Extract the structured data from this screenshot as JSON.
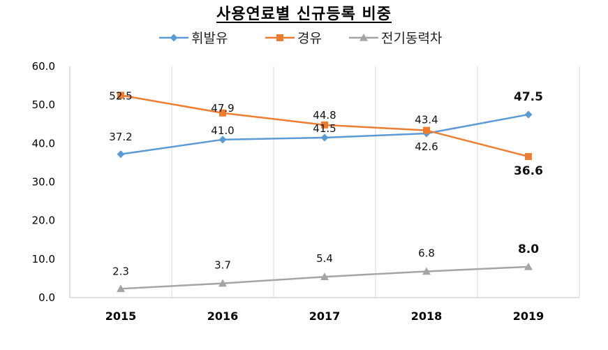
{
  "chart_data": {
    "type": "line",
    "title": "사용연료별 신규등록 비중",
    "categories": [
      "2015",
      "2016",
      "2017",
      "2018",
      "2019"
    ],
    "ylim": [
      0,
      60
    ],
    "yticks": [
      "0.0",
      "10.0",
      "20.0",
      "30.0",
      "40.0",
      "50.0",
      "60.0"
    ],
    "grid": "vertical",
    "legend_position": "top",
    "series": [
      {
        "name": "휘발유",
        "color": "#5B9BD5",
        "marker": "diamond",
        "values": [
          37.2,
          41.0,
          41.5,
          42.6,
          47.5
        ],
        "labels": [
          "37.2",
          "41.0",
          "41.5",
          "42.6",
          "47.5"
        ],
        "highlight_last": true
      },
      {
        "name": "경유",
        "color": "#ED7D31",
        "marker": "square",
        "values": [
          52.5,
          47.9,
          44.8,
          43.4,
          36.6
        ],
        "labels": [
          "52.5",
          "47.9",
          "44.8",
          "43.4",
          "36.6"
        ],
        "highlight_last": true
      },
      {
        "name": "전기동력차",
        "color": "#A5A5A5",
        "marker": "triangle",
        "values": [
          2.3,
          3.7,
          5.4,
          6.8,
          8.0
        ],
        "labels": [
          "2.3",
          "3.7",
          "5.4",
          "6.8",
          "8.0"
        ],
        "highlight_last": true
      }
    ],
    "highlight_color": "#FF0000"
  }
}
